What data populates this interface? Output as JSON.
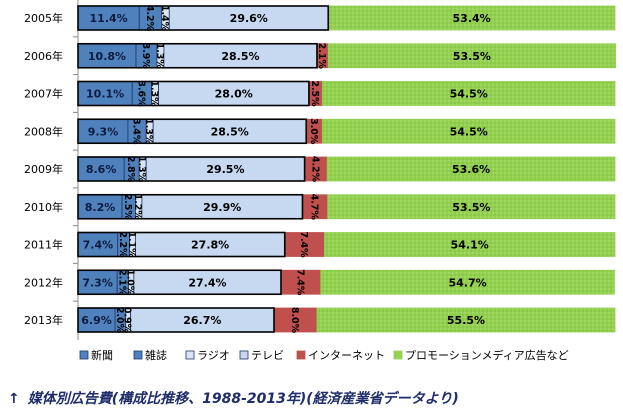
{
  "chart_data": {
    "type": "bar",
    "orientation": "horizontal",
    "stacked": "100%",
    "categories": [
      "2005年",
      "2006年",
      "2007年",
      "2008年",
      "2009年",
      "2010年",
      "2011年",
      "2012年",
      "2013年"
    ],
    "series": [
      {
        "name": "新聞",
        "color": "#4f81bd",
        "values": [
          11.4,
          10.8,
          10.1,
          9.3,
          8.6,
          8.2,
          7.4,
          7.3,
          6.9
        ],
        "labels": [
          "11.4%",
          "10.8%",
          "10.1%",
          "9.3%",
          "8.6%",
          "8.2%",
          "7.4%",
          "7.3%",
          "6.9%"
        ]
      },
      {
        "name": "雑誌",
        "color": "#4f81bd",
        "values": [
          4.2,
          3.9,
          3.6,
          3.4,
          2.8,
          2.5,
          2.2,
          2.1,
          2.0
        ],
        "labels": [
          "4.2%",
          "3.9%",
          "3.6%",
          "3.4%",
          "2.8%",
          "2.5%",
          "2.2%",
          "2.1%",
          "2.0%"
        ]
      },
      {
        "name": "ラジオ",
        "color": "#dbe5f1",
        "values": [
          1.4,
          1.3,
          1.3,
          1.3,
          1.3,
          1.2,
          1.1,
          1.0,
          0.9
        ],
        "labels": [
          "1.4%",
          "1.3%",
          "1.3%",
          "1.3%",
          "1.3%",
          "1.2%",
          "1.1%",
          "1.0%",
          "0.9%"
        ]
      },
      {
        "name": "テレビ",
        "color": "#c6d9f1",
        "values": [
          29.6,
          28.5,
          28.0,
          28.5,
          29.5,
          29.9,
          27.8,
          27.4,
          26.7
        ],
        "labels": [
          "29.6%",
          "28.5%",
          "28.0%",
          "28.5%",
          "29.5%",
          "29.9%",
          "27.8%",
          "27.4%",
          "26.7%"
        ]
      },
      {
        "name": "インターネット",
        "color": "#c0504d",
        "values": [
          0,
          2.1,
          2.5,
          3.0,
          4.2,
          4.7,
          7.4,
          7.4,
          8.0
        ],
        "labels": [
          "",
          "2.1%",
          "2.5%",
          "3.0%",
          "4.2%",
          "4.7%",
          "7.4%",
          "7.4%",
          "8.0%"
        ]
      },
      {
        "name": "プロモーションメディア広告など",
        "color": "#92d050",
        "values": [
          53.4,
          53.5,
          54.5,
          54.5,
          53.6,
          53.5,
          54.1,
          54.7,
          55.5
        ],
        "labels": [
          "53.4%",
          "53.5%",
          "54.5%",
          "54.5%",
          "53.6%",
          "53.5%",
          "54.1%",
          "54.7%",
          "55.5%"
        ]
      }
    ],
    "xlim": [
      0,
      100
    ],
    "legend": "bottom",
    "grid": false
  },
  "caption": {
    "arrow": "↑",
    "text": "媒体別広告費(構成比推移、1988-2013年)(経済産業省データより)"
  }
}
